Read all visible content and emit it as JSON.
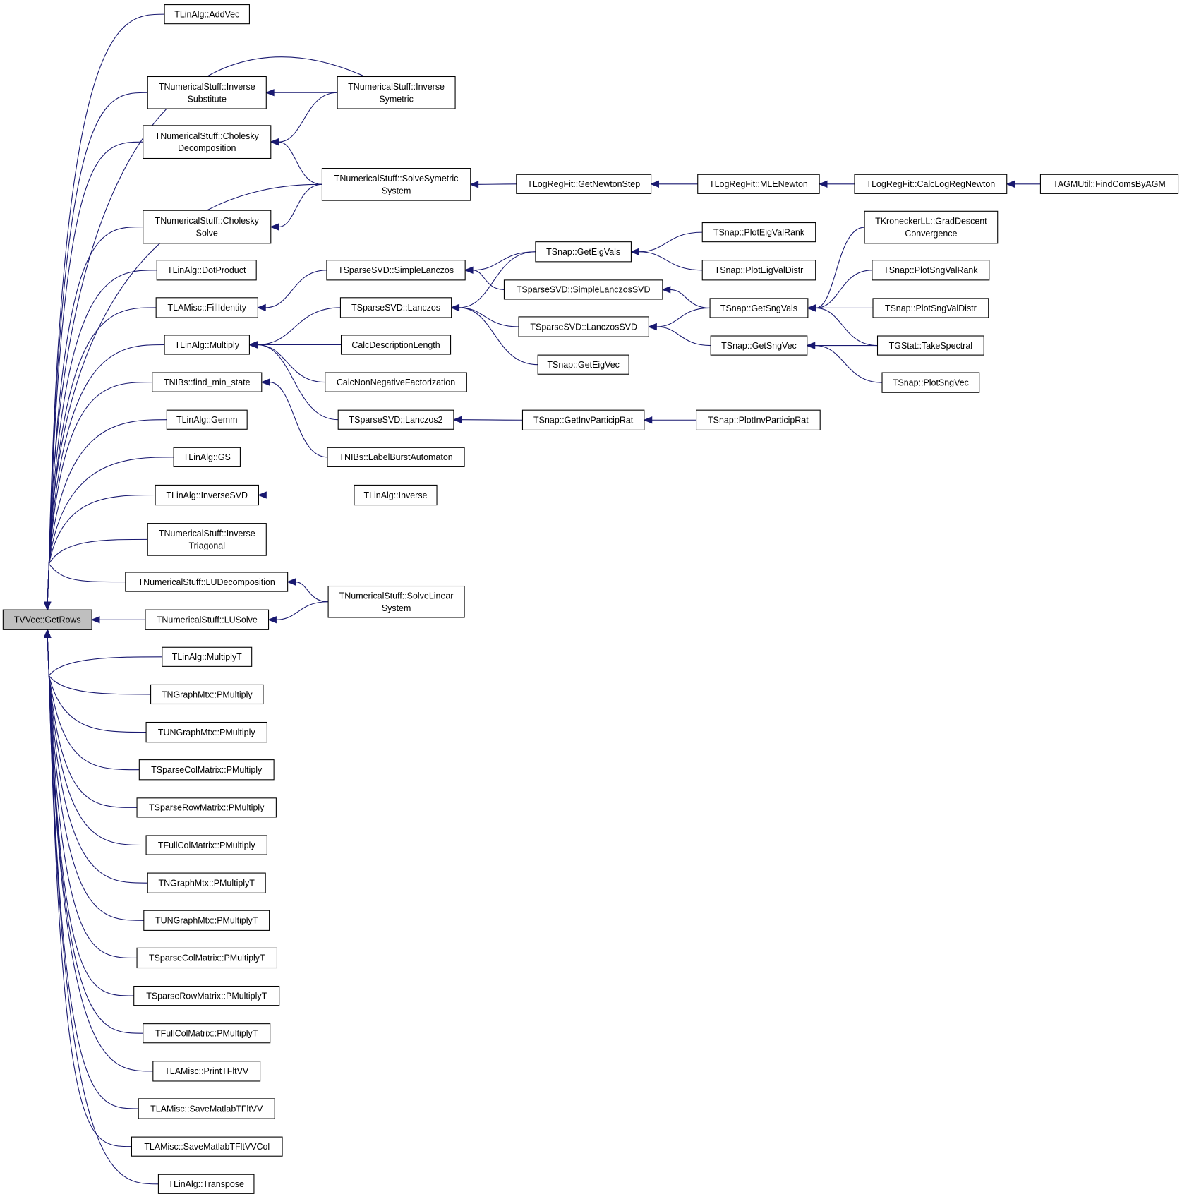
{
  "graph": {
    "edge_color": "#191970",
    "focus_fill": "#bfbfbf",
    "nodes": [
      {
        "id": "getrows",
        "lines": [
          "TVVec::GetRows"
        ],
        "focus": true
      },
      {
        "id": "addvec",
        "lines": [
          "TLinAlg::AddVec"
        ]
      },
      {
        "id": "invsubst",
        "lines": [
          "TNumericalStuff::Inverse",
          "Substitute"
        ]
      },
      {
        "id": "choldec",
        "lines": [
          "TNumericalStuff::Cholesky",
          "Decomposition"
        ]
      },
      {
        "id": "cholsolve",
        "lines": [
          "TNumericalStuff::Cholesky",
          "Solve"
        ]
      },
      {
        "id": "dotprod",
        "lines": [
          "TLinAlg::DotProduct"
        ]
      },
      {
        "id": "fillid",
        "lines": [
          "TLAMisc::FillIdentity"
        ]
      },
      {
        "id": "multiply",
        "lines": [
          "TLinAlg::Multiply"
        ]
      },
      {
        "id": "findmin",
        "lines": [
          "TNIBs::find_min_state"
        ]
      },
      {
        "id": "gemm",
        "lines": [
          "TLinAlg::Gemm"
        ]
      },
      {
        "id": "gs",
        "lines": [
          "TLinAlg::GS"
        ]
      },
      {
        "id": "invsvd",
        "lines": [
          "TLinAlg::InverseSVD"
        ]
      },
      {
        "id": "invtri",
        "lines": [
          "TNumericalStuff::Inverse",
          "Triagonal"
        ]
      },
      {
        "id": "ludec",
        "lines": [
          "TNumericalStuff::LUDecomposition"
        ]
      },
      {
        "id": "lusolve",
        "lines": [
          "TNumericalStuff::LUSolve"
        ]
      },
      {
        "id": "multt",
        "lines": [
          "TLinAlg::MultiplyT"
        ]
      },
      {
        "id": "ngpm",
        "lines": [
          "TNGraphMtx::PMultiply"
        ]
      },
      {
        "id": "ungpm",
        "lines": [
          "TUNGraphMtx::PMultiply"
        ]
      },
      {
        "id": "scpm",
        "lines": [
          "TSparseColMatrix::PMultiply"
        ]
      },
      {
        "id": "srpm",
        "lines": [
          "TSparseRowMatrix::PMultiply"
        ]
      },
      {
        "id": "fcpm",
        "lines": [
          "TFullColMatrix::PMultiply"
        ]
      },
      {
        "id": "ngpmt",
        "lines": [
          "TNGraphMtx::PMultiplyT"
        ]
      },
      {
        "id": "ungpmt",
        "lines": [
          "TUNGraphMtx::PMultiplyT"
        ]
      },
      {
        "id": "scpmt",
        "lines": [
          "TSparseColMatrix::PMultiplyT"
        ]
      },
      {
        "id": "srpmt",
        "lines": [
          "TSparseRowMatrix::PMultiplyT"
        ]
      },
      {
        "id": "fcpmt",
        "lines": [
          "TFullColMatrix::PMultiplyT"
        ]
      },
      {
        "id": "printvv",
        "lines": [
          "TLAMisc::PrintTFltVV"
        ]
      },
      {
        "id": "savevv",
        "lines": [
          "TLAMisc::SaveMatlabTFltVV"
        ]
      },
      {
        "id": "savevvcol",
        "lines": [
          "TLAMisc::SaveMatlabTFltVVCol"
        ]
      },
      {
        "id": "transpose",
        "lines": [
          "TLinAlg::Transpose"
        ]
      },
      {
        "id": "invsym",
        "lines": [
          "TNumericalStuff::Inverse",
          "Symetric"
        ]
      },
      {
        "id": "solvesym",
        "lines": [
          "TNumericalStuff::SolveSymetric",
          "System"
        ]
      },
      {
        "id": "simplelanczos",
        "lines": [
          "TSparseSVD::SimpleLanczos"
        ]
      },
      {
        "id": "lanczos",
        "lines": [
          "TSparseSVD::Lanczos"
        ]
      },
      {
        "id": "calcdesc",
        "lines": [
          "CalcDescriptionLength"
        ]
      },
      {
        "id": "calcnonneg",
        "lines": [
          "CalcNonNegativeFactorization"
        ]
      },
      {
        "id": "lanczos2",
        "lines": [
          "TSparseSVD::Lanczos2"
        ]
      },
      {
        "id": "labelburst",
        "lines": [
          "TNIBs::LabelBurstAutomaton"
        ]
      },
      {
        "id": "inverse",
        "lines": [
          "TLinAlg::Inverse"
        ]
      },
      {
        "id": "solvelin",
        "lines": [
          "TNumericalStuff::SolveLinear",
          "System"
        ]
      },
      {
        "id": "newtonstep",
        "lines": [
          "TLogRegFit::GetNewtonStep"
        ]
      },
      {
        "id": "geteigvals",
        "lines": [
          "TSnap::GetEigVals"
        ]
      },
      {
        "id": "simplelanczossvd",
        "lines": [
          "TSparseSVD::SimpleLanczosSVD"
        ]
      },
      {
        "id": "lanczossvd",
        "lines": [
          "TSparseSVD::LanczosSVD"
        ]
      },
      {
        "id": "geteigvec",
        "lines": [
          "TSnap::GetEigVec"
        ]
      },
      {
        "id": "getinvpr",
        "lines": [
          "TSnap::GetInvParticipRat"
        ]
      },
      {
        "id": "mlenewton",
        "lines": [
          "TLogRegFit::MLENewton"
        ]
      },
      {
        "id": "ploteigrank",
        "lines": [
          "TSnap::PlotEigValRank"
        ]
      },
      {
        "id": "ploteigdistr",
        "lines": [
          "TSnap::PlotEigValDistr"
        ]
      },
      {
        "id": "getsngvals",
        "lines": [
          "TSnap::GetSngVals"
        ]
      },
      {
        "id": "getsngvec",
        "lines": [
          "TSnap::GetSngVec"
        ]
      },
      {
        "id": "plotinvpr",
        "lines": [
          "TSnap::PlotInvParticipRat"
        ]
      },
      {
        "id": "calclogreg",
        "lines": [
          "TLogRegFit::CalcLogRegNewton"
        ]
      },
      {
        "id": "graddesc",
        "lines": [
          "TKroneckerLL::GradDescent",
          "Convergence"
        ]
      },
      {
        "id": "plotsngrank",
        "lines": [
          "TSnap::PlotSngValRank"
        ]
      },
      {
        "id": "plotsngdistr",
        "lines": [
          "TSnap::PlotSngValDistr"
        ]
      },
      {
        "id": "takespectral",
        "lines": [
          "TGStat::TakeSpectral"
        ]
      },
      {
        "id": "plotsngvec",
        "lines": [
          "TSnap::PlotSngVec"
        ]
      },
      {
        "id": "findcoms",
        "lines": [
          "TAGMUtil::FindComsByAGM"
        ]
      }
    ],
    "edges": [
      [
        "addvec",
        "getrows"
      ],
      [
        "invsubst",
        "getrows"
      ],
      [
        "choldec",
        "getrows"
      ],
      [
        "cholsolve",
        "getrows"
      ],
      [
        "dotprod",
        "getrows"
      ],
      [
        "fillid",
        "getrows"
      ],
      [
        "multiply",
        "getrows"
      ],
      [
        "findmin",
        "getrows"
      ],
      [
        "gemm",
        "getrows"
      ],
      [
        "gs",
        "getrows"
      ],
      [
        "invsvd",
        "getrows"
      ],
      [
        "invtri",
        "getrows"
      ],
      [
        "ludec",
        "getrows"
      ],
      [
        "lusolve",
        "getrows"
      ],
      [
        "multt",
        "getrows"
      ],
      [
        "ngpm",
        "getrows"
      ],
      [
        "ungpm",
        "getrows"
      ],
      [
        "scpm",
        "getrows"
      ],
      [
        "srpm",
        "getrows"
      ],
      [
        "fcpm",
        "getrows"
      ],
      [
        "ngpmt",
        "getrows"
      ],
      [
        "ungpmt",
        "getrows"
      ],
      [
        "scpmt",
        "getrows"
      ],
      [
        "srpmt",
        "getrows"
      ],
      [
        "fcpmt",
        "getrows"
      ],
      [
        "printvv",
        "getrows"
      ],
      [
        "savevv",
        "getrows"
      ],
      [
        "savevvcol",
        "getrows"
      ],
      [
        "transpose",
        "getrows"
      ],
      [
        "invsym",
        "getrows"
      ],
      [
        "solvesym",
        "getrows"
      ],
      [
        "invsym",
        "invsubst"
      ],
      [
        "invsym",
        "choldec"
      ],
      [
        "solvesym",
        "choldec"
      ],
      [
        "solvesym",
        "cholsolve"
      ],
      [
        "newtonstep",
        "solvesym"
      ],
      [
        "mlenewton",
        "newtonstep"
      ],
      [
        "calclogreg",
        "mlenewton"
      ],
      [
        "findcoms",
        "calclogreg"
      ],
      [
        "simplelanczos",
        "fillid"
      ],
      [
        "geteigvals",
        "simplelanczos"
      ],
      [
        "geteigvals",
        "lanczos"
      ],
      [
        "simplelanczossvd",
        "simplelanczos"
      ],
      [
        "lanczos",
        "multiply"
      ],
      [
        "lanczossvd",
        "lanczos"
      ],
      [
        "geteigvec",
        "lanczos"
      ],
      [
        "calcdesc",
        "multiply"
      ],
      [
        "calcnonneg",
        "multiply"
      ],
      [
        "lanczos2",
        "multiply"
      ],
      [
        "labelburst",
        "findmin"
      ],
      [
        "getinvpr",
        "lanczos2"
      ],
      [
        "plotinvpr",
        "getinvpr"
      ],
      [
        "inverse",
        "invsvd"
      ],
      [
        "solvelin",
        "ludec"
      ],
      [
        "solvelin",
        "lusolve"
      ],
      [
        "ploteigrank",
        "geteigvals"
      ],
      [
        "ploteigdistr",
        "geteigvals"
      ],
      [
        "getsngvals",
        "simplelanczossvd"
      ],
      [
        "getsngvals",
        "lanczossvd"
      ],
      [
        "getsngvec",
        "lanczossvd"
      ],
      [
        "graddesc",
        "getsngvals"
      ],
      [
        "plotsngrank",
        "getsngvals"
      ],
      [
        "plotsngdistr",
        "getsngvals"
      ],
      [
        "takespectral",
        "getsngvals"
      ],
      [
        "takespectral",
        "getsngvec"
      ],
      [
        "plotsngvec",
        "getsngvec"
      ]
    ]
  }
}
